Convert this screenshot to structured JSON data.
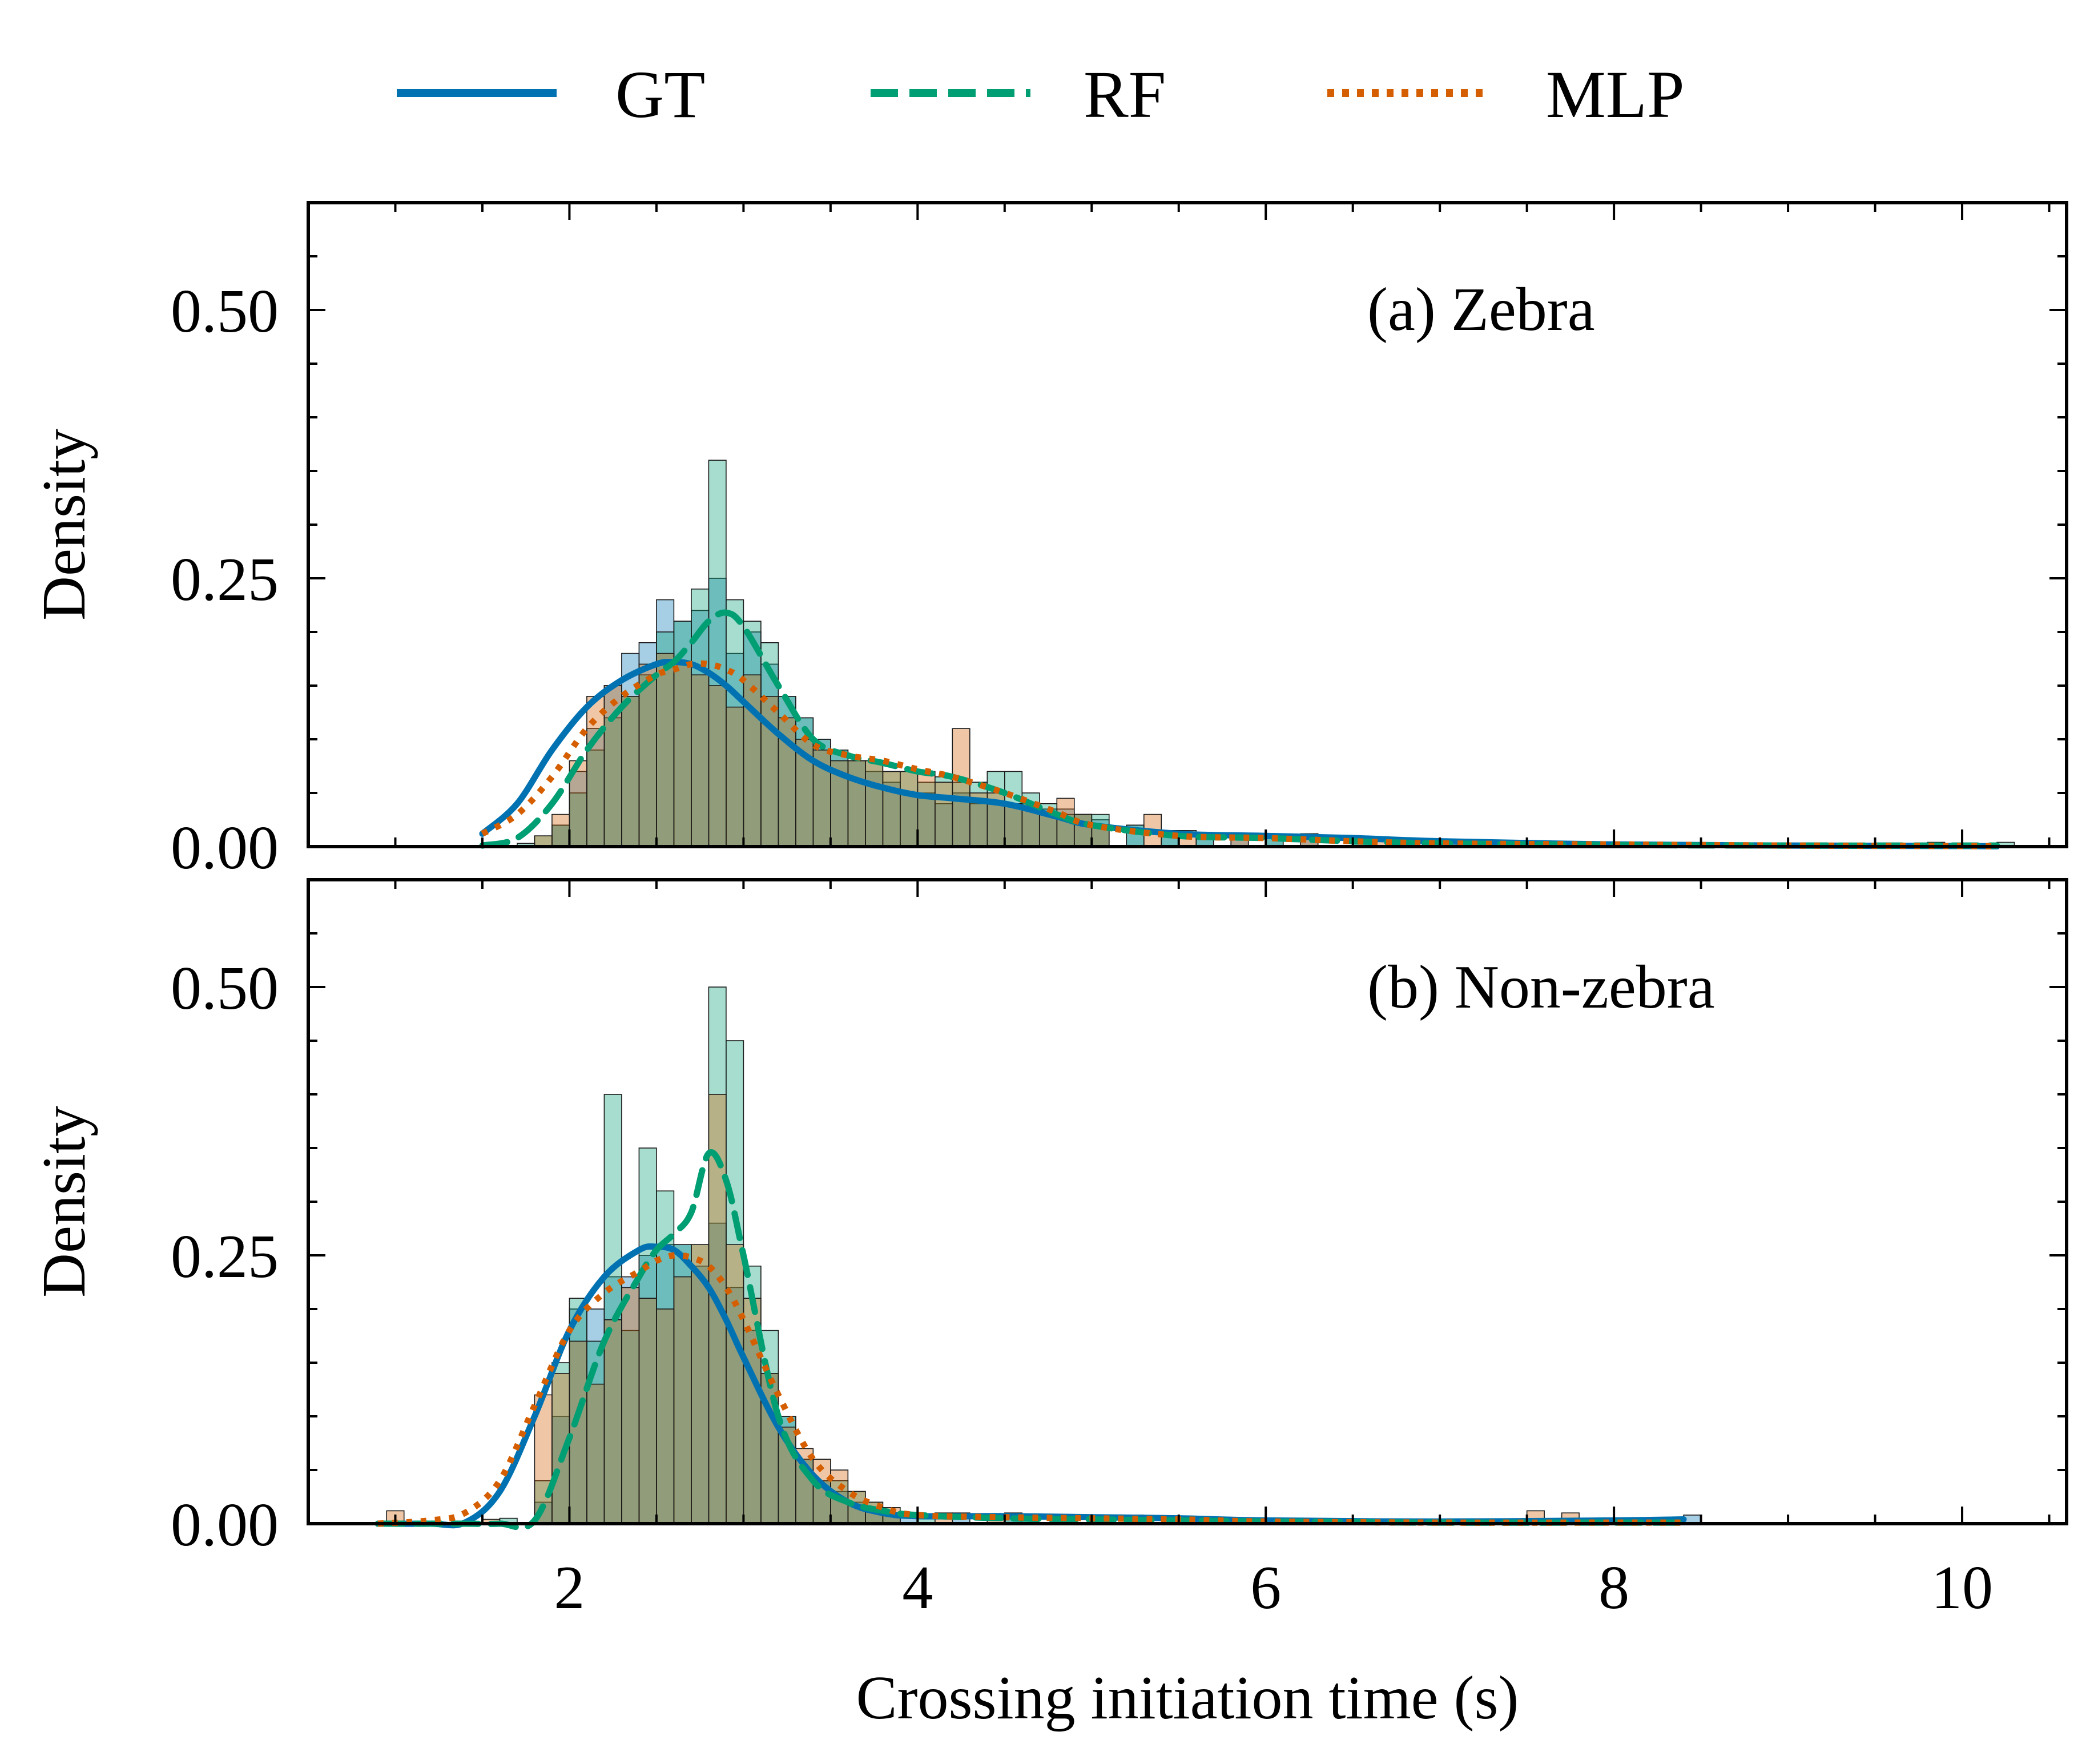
{
  "chart_data": {
    "type": "histogram+kde",
    "legend": [
      {
        "name": "GT",
        "color": "#0072b2",
        "style": "solid"
      },
      {
        "name": "RF",
        "color": "#009e73",
        "style": "dashed"
      },
      {
        "name": "MLP",
        "color": "#d55e00",
        "style": "dotted"
      }
    ],
    "xlabel": "Crossing initiation time (s)",
    "xlim": [
      0.5,
      10.6
    ],
    "xticks": [
      2,
      4,
      6,
      8,
      10
    ],
    "xtick_labels": [
      "2",
      "4",
      "6",
      "8",
      "10"
    ],
    "ylim": [
      0,
      0.6
    ],
    "yticks": [
      0,
      0.25,
      0.5
    ],
    "ytick_labels": [
      "0.00",
      "0.25",
      "0.50"
    ],
    "bin_width": 0.1,
    "panels": [
      {
        "label": "(a) Zebra",
        "ylabel": "Density",
        "kde": {
          "x": [
            1.5,
            1.7,
            1.9,
            2.1,
            2.3,
            2.5,
            2.6,
            2.7,
            2.8,
            2.9,
            3.0,
            3.2,
            3.4,
            3.6,
            3.8,
            4.0,
            4.2,
            4.5,
            4.8,
            5.0,
            5.5,
            6.0,
            6.5,
            7.0,
            8.0,
            9.0,
            10.0,
            10.2
          ],
          "GT": [
            0.012,
            0.04,
            0.09,
            0.13,
            0.155,
            0.17,
            0.172,
            0.17,
            0.162,
            0.15,
            0.135,
            0.105,
            0.08,
            0.065,
            0.055,
            0.048,
            0.045,
            0.04,
            0.028,
            0.02,
            0.012,
            0.01,
            0.008,
            0.005,
            0.002,
            0.001,
            0.0005,
            0.0003
          ],
          "RF": [
            0.001,
            0.008,
            0.04,
            0.09,
            0.13,
            0.16,
            0.172,
            0.19,
            0.21,
            0.218,
            0.205,
            0.15,
            0.1,
            0.085,
            0.078,
            0.07,
            0.065,
            0.05,
            0.03,
            0.02,
            0.01,
            0.008,
            0.005,
            0.003,
            0.0015,
            0.001,
            0.001,
            0.001
          ],
          "MLP": [
            0.012,
            0.03,
            0.065,
            0.11,
            0.14,
            0.16,
            0.165,
            0.17,
            0.17,
            0.165,
            0.155,
            0.125,
            0.095,
            0.085,
            0.08,
            0.072,
            0.065,
            0.05,
            0.032,
            0.02,
            0.01,
            0.008,
            0.005,
            0.003,
            0.002,
            0.001,
            0.0005,
            0.0003
          ]
        },
        "histograms": {
          "GT": [
            [
              1.9,
              0.02
            ],
            [
              2.0,
              0.07
            ],
            [
              2.1,
              0.11
            ],
            [
              2.2,
              0.15
            ],
            [
              2.3,
              0.18
            ],
            [
              2.4,
              0.19
            ],
            [
              2.5,
              0.23
            ],
            [
              2.6,
              0.21
            ],
            [
              2.7,
              0.22
            ],
            [
              2.8,
              0.25
            ],
            [
              2.9,
              0.18
            ],
            [
              3.0,
              0.2
            ],
            [
              3.1,
              0.17
            ],
            [
              3.2,
              0.14
            ],
            [
              3.3,
              0.12
            ],
            [
              3.4,
              0.1
            ],
            [
              3.5,
              0.09
            ],
            [
              3.6,
              0.08
            ],
            [
              3.7,
              0.07
            ],
            [
              3.8,
              0.06
            ],
            [
              3.9,
              0.05
            ],
            [
              4.0,
              0.05
            ],
            [
              4.1,
              0.04
            ],
            [
              4.2,
              0.05
            ],
            [
              4.3,
              0.04
            ],
            [
              4.4,
              0.04
            ],
            [
              4.5,
              0.04
            ],
            [
              4.6,
              0.04
            ],
            [
              4.7,
              0.035
            ],
            [
              4.8,
              0.035
            ],
            [
              4.9,
              0.03
            ],
            [
              5.0,
              0.025
            ],
            [
              5.2,
              0.02
            ],
            [
              5.4,
              0.015
            ],
            [
              5.6,
              0.012
            ],
            [
              5.8,
              0.012
            ],
            [
              6.0,
              0.01
            ],
            [
              6.2,
              0.012
            ],
            [
              6.5,
              0.006
            ],
            [
              6.8,
              0.006
            ],
            [
              7.2,
              0.003
            ],
            [
              8.0,
              0.002
            ],
            [
              9.0,
              0.002
            ],
            [
              10.1,
              0.002
            ]
          ],
          "RF": [
            [
              1.7,
              0.003
            ],
            [
              1.8,
              0.01
            ],
            [
              1.9,
              0.02
            ],
            [
              2.0,
              0.05
            ],
            [
              2.1,
              0.09
            ],
            [
              2.2,
              0.12
            ],
            [
              2.3,
              0.14
            ],
            [
              2.4,
              0.16
            ],
            [
              2.5,
              0.2
            ],
            [
              2.6,
              0.21
            ],
            [
              2.7,
              0.24
            ],
            [
              2.8,
              0.36
            ],
            [
              2.9,
              0.23
            ],
            [
              3.0,
              0.21
            ],
            [
              3.1,
              0.19
            ],
            [
              3.2,
              0.14
            ],
            [
              3.3,
              0.12
            ],
            [
              3.4,
              0.1
            ],
            [
              3.5,
              0.09
            ],
            [
              3.6,
              0.08
            ],
            [
              3.7,
              0.08
            ],
            [
              3.8,
              0.07
            ],
            [
              3.9,
              0.07
            ],
            [
              4.0,
              0.06
            ],
            [
              4.1,
              0.065
            ],
            [
              4.2,
              0.06
            ],
            [
              4.3,
              0.06
            ],
            [
              4.4,
              0.07
            ],
            [
              4.5,
              0.07
            ],
            [
              4.6,
              0.05
            ],
            [
              4.7,
              0.04
            ],
            [
              4.8,
              0.03
            ],
            [
              4.9,
              0.03
            ],
            [
              5.0,
              0.03
            ],
            [
              5.2,
              0.02
            ],
            [
              5.4,
              0.01
            ],
            [
              5.6,
              0.01
            ],
            [
              6.0,
              0.008
            ],
            [
              6.5,
              0.005
            ],
            [
              7.0,
              0.003
            ],
            [
              9.8,
              0.004
            ],
            [
              10.2,
              0.004
            ]
          ],
          "MLP": [
            [
              1.8,
              0.01
            ],
            [
              1.9,
              0.03
            ],
            [
              2.0,
              0.08
            ],
            [
              2.1,
              0.14
            ],
            [
              2.2,
              0.15
            ],
            [
              2.3,
              0.14
            ],
            [
              2.4,
              0.17
            ],
            [
              2.5,
              0.18
            ],
            [
              2.6,
              0.17
            ],
            [
              2.7,
              0.16
            ],
            [
              2.8,
              0.15
            ],
            [
              2.9,
              0.13
            ],
            [
              3.0,
              0.16
            ],
            [
              3.1,
              0.14
            ],
            [
              3.2,
              0.12
            ],
            [
              3.3,
              0.1
            ],
            [
              3.4,
              0.09
            ],
            [
              3.5,
              0.08
            ],
            [
              3.6,
              0.08
            ],
            [
              3.7,
              0.08
            ],
            [
              3.8,
              0.07
            ],
            [
              3.9,
              0.07
            ],
            [
              4.0,
              0.07
            ],
            [
              4.1,
              0.06
            ],
            [
              4.2,
              0.11
            ],
            [
              4.3,
              0.05
            ],
            [
              4.4,
              0.05
            ],
            [
              4.5,
              0.04
            ],
            [
              4.6,
              0.04
            ],
            [
              4.7,
              0.03
            ],
            [
              4.8,
              0.045
            ],
            [
              4.9,
              0.03
            ],
            [
              5.0,
              0.02
            ],
            [
              5.3,
              0.03
            ],
            [
              5.5,
              0.015
            ],
            [
              5.8,
              0.01
            ],
            [
              6.2,
              0.008
            ],
            [
              6.6,
              0.005
            ],
            [
              7.0,
              0.004
            ],
            [
              7.5,
              0.003
            ],
            [
              8.0,
              0.003
            ],
            [
              8.5,
              0.003
            ],
            [
              9.0,
              0.003
            ],
            [
              9.5,
              0.002
            ]
          ]
        }
      },
      {
        "label": "(b) Non-zebra",
        "ylabel": "Density",
        "kde": {
          "x": [
            0.9,
            1.2,
            1.4,
            1.6,
            1.8,
            2.0,
            2.2,
            2.4,
            2.5,
            2.6,
            2.7,
            2.8,
            2.9,
            3.0,
            3.2,
            3.4,
            3.6,
            3.8,
            4.0,
            4.5,
            5.0,
            5.5,
            6.0,
            7.0,
            8.0,
            8.4
          ],
          "GT": [
            0.0,
            0.0,
            0.001,
            0.03,
            0.1,
            0.18,
            0.23,
            0.255,
            0.258,
            0.255,
            0.24,
            0.22,
            0.19,
            0.155,
            0.09,
            0.045,
            0.02,
            0.01,
            0.007,
            0.007,
            0.006,
            0.005,
            0.003,
            0.002,
            0.003,
            0.004
          ],
          "RF": [
            0.0,
            0.0,
            0.0,
            0.0,
            0.003,
            0.08,
            0.17,
            0.23,
            0.255,
            0.27,
            0.29,
            0.345,
            0.32,
            0.25,
            0.1,
            0.04,
            0.02,
            0.012,
            0.008,
            0.005,
            0.004,
            0.003,
            0.002,
            0.001,
            0.001,
            0.001
          ],
          "MLP": [
            0.0,
            0.003,
            0.01,
            0.04,
            0.11,
            0.18,
            0.215,
            0.235,
            0.245,
            0.25,
            0.248,
            0.24,
            0.22,
            0.19,
            0.12,
            0.06,
            0.03,
            0.015,
            0.008,
            0.006,
            0.005,
            0.004,
            0.002,
            0.001,
            0.001,
            0.001
          ]
        },
        "histograms": {
          "GT": [
            [
              1.8,
              0.02
            ],
            [
              1.9,
              0.1
            ],
            [
              2.0,
              0.2
            ],
            [
              2.1,
              0.2
            ],
            [
              2.2,
              0.23
            ],
            [
              2.3,
              0.23
            ],
            [
              2.4,
              0.25
            ],
            [
              2.5,
              0.26
            ],
            [
              2.6,
              0.26
            ],
            [
              2.7,
              0.24
            ],
            [
              2.8,
              0.28
            ],
            [
              2.9,
              0.22
            ],
            [
              3.0,
              0.18
            ],
            [
              3.1,
              0.14
            ],
            [
              3.2,
              0.1
            ],
            [
              3.3,
              0.06
            ],
            [
              3.4,
              0.04
            ],
            [
              3.5,
              0.03
            ],
            [
              3.6,
              0.02
            ],
            [
              3.7,
              0.015
            ],
            [
              3.8,
              0.01
            ],
            [
              3.9,
              0.008
            ],
            [
              4.2,
              0.01
            ],
            [
              4.5,
              0.01
            ],
            [
              4.8,
              0.008
            ],
            [
              5.2,
              0.008
            ],
            [
              5.6,
              0.005
            ],
            [
              8.4,
              0.008
            ]
          ],
          "RF": [
            [
              1.6,
              0.005
            ],
            [
              1.8,
              0.04
            ],
            [
              1.9,
              0.15
            ],
            [
              2.0,
              0.21
            ],
            [
              2.1,
              0.17
            ],
            [
              2.2,
              0.4
            ],
            [
              2.3,
              0.18
            ],
            [
              2.4,
              0.35
            ],
            [
              2.5,
              0.31
            ],
            [
              2.6,
              0.26
            ],
            [
              2.7,
              0.26
            ],
            [
              2.8,
              0.5
            ],
            [
              2.9,
              0.45
            ],
            [
              3.0,
              0.24
            ],
            [
              3.1,
              0.18
            ],
            [
              3.2,
              0.1
            ],
            [
              3.3,
              0.06
            ],
            [
              3.4,
              0.04
            ],
            [
              3.5,
              0.04
            ],
            [
              3.6,
              0.03
            ],
            [
              3.7,
              0.02
            ],
            [
              3.8,
              0.01
            ],
            [
              4.0,
              0.008
            ],
            [
              4.5,
              0.006
            ],
            [
              5.5,
              0.006
            ]
          ],
          "MLP": [
            [
              0.95,
              0.012
            ],
            [
              1.5,
              0.004
            ],
            [
              1.8,
              0.12
            ],
            [
              1.9,
              0.14
            ],
            [
              2.0,
              0.17
            ],
            [
              2.1,
              0.13
            ],
            [
              2.2,
              0.19
            ],
            [
              2.3,
              0.22
            ],
            [
              2.4,
              0.21
            ],
            [
              2.5,
              0.2
            ],
            [
              2.6,
              0.23
            ],
            [
              2.7,
              0.26
            ],
            [
              2.8,
              0.4
            ],
            [
              2.9,
              0.26
            ],
            [
              3.0,
              0.21
            ],
            [
              3.1,
              0.14
            ],
            [
              3.2,
              0.09
            ],
            [
              3.3,
              0.07
            ],
            [
              3.4,
              0.06
            ],
            [
              3.5,
              0.05
            ],
            [
              3.6,
              0.03
            ],
            [
              3.7,
              0.02
            ],
            [
              3.8,
              0.015
            ],
            [
              4.1,
              0.01
            ],
            [
              4.4,
              0.008
            ],
            [
              5.0,
              0.008
            ],
            [
              5.8,
              0.005
            ],
            [
              7.5,
              0.012
            ],
            [
              7.7,
              0.01
            ],
            [
              8.2,
              0.004
            ]
          ]
        }
      }
    ]
  }
}
